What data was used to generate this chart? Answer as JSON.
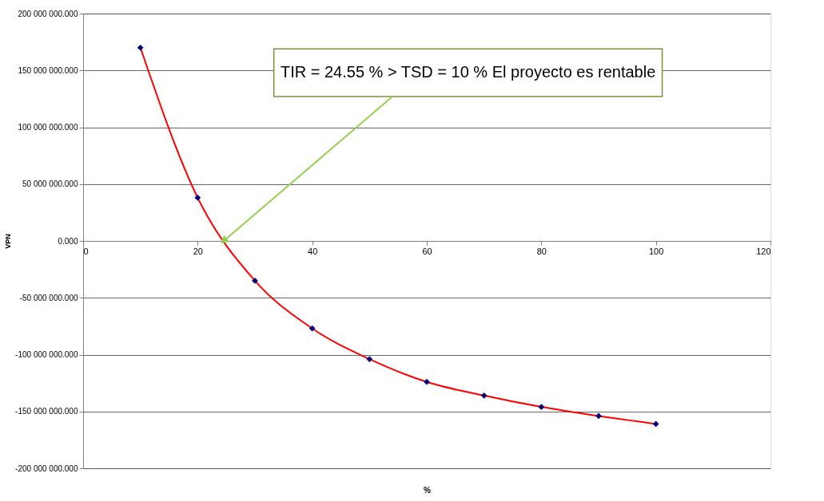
{
  "chart_data": {
    "type": "line",
    "xlabel": "%",
    "ylabel": "VPN",
    "x": [
      10,
      20,
      30,
      40,
      50,
      60,
      70,
      80,
      90,
      100
    ],
    "series": [
      {
        "color": "#ff0000",
        "marker": "none",
        "values": [
          170000000,
          38000000,
          -35000000,
          -77000000,
          -104000000,
          -124000000,
          -136000000,
          -146000000,
          -154000000,
          -161000000
        ]
      },
      {
        "type": "scatter",
        "color": "#000080",
        "marker": "diamond",
        "values": [
          170000000,
          38000000,
          -35000000,
          -77000000,
          -104000000,
          -124000000,
          -136000000,
          -146000000,
          -154000000,
          -161000000
        ]
      }
    ],
    "xlim": [
      0,
      120
    ],
    "xticks": [
      0,
      20,
      40,
      60,
      80,
      100,
      120
    ],
    "ylim": [
      -200000000,
      200000000
    ],
    "yticks": [
      {
        "value": -200000000,
        "label": "-200 000 000.000"
      },
      {
        "value": -150000000,
        "label": "-150 000 000.000"
      },
      {
        "value": -100000000,
        "label": "-100 000 000.000"
      },
      {
        "value": -50000000,
        "label": "-50 000 000.000"
      },
      {
        "value": 0,
        "label": "0.000"
      },
      {
        "value": 50000000,
        "label": "50 000 000.000"
      },
      {
        "value": 100000000,
        "label": "100 000 000.000"
      },
      {
        "value": 150000000,
        "label": "150 000 000.000"
      },
      {
        "value": 200000000,
        "label": "200 000 000.000"
      }
    ],
    "grid": "y",
    "annotations": [
      {
        "text": "TIR = 24.55 %  > TSD = 10 % El proyecto es rentable",
        "x": 24.55,
        "y": 0
      }
    ]
  }
}
